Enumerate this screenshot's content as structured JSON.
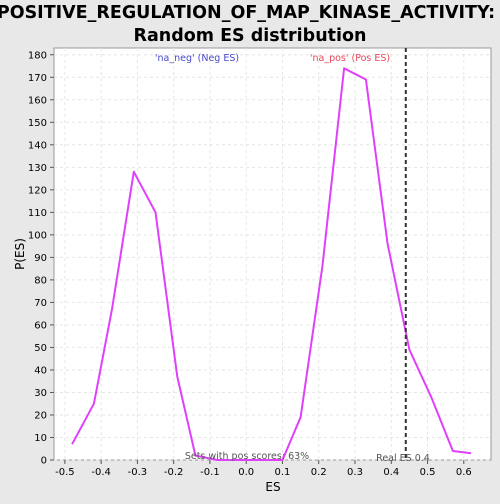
{
  "chart_data": {
    "type": "line",
    "title_lines": [
      "POSITIVE_REGULATION_OF_MAP_KINASE_ACTIVITY:",
      "Random ES distribution"
    ],
    "xlabel": "ES",
    "ylabel": "P(ES)",
    "xlim": [
      -0.53,
      0.675
    ],
    "ylim": [
      0,
      183
    ],
    "x_ticks": [
      -0.5,
      -0.4,
      -0.3,
      -0.2,
      -0.1,
      0.0,
      0.1,
      0.2,
      0.3,
      0.4,
      0.5,
      0.6
    ],
    "x_tick_labels": [
      "-0.5",
      "-0.4",
      "-0.3",
      "-0.2",
      "-0.1",
      "0.0",
      "0.1",
      "0.2",
      "0.3",
      "0.4",
      "0.5",
      "0.6"
    ],
    "y_ticks": [
      0,
      10,
      20,
      30,
      40,
      50,
      60,
      70,
      80,
      90,
      100,
      110,
      120,
      130,
      140,
      150,
      160,
      170,
      180
    ],
    "y_tick_labels": [
      "0",
      "10",
      "20",
      "30",
      "40",
      "50",
      "60",
      "70",
      "80",
      "90",
      "100",
      "110",
      "120",
      "130",
      "140",
      "150",
      "160",
      "170",
      "180"
    ],
    "grid": true,
    "series": [
      {
        "color": "#e040fb",
        "points": [
          {
            "x": -0.48,
            "y": 7
          },
          {
            "x": -0.42,
            "y": 25
          },
          {
            "x": -0.37,
            "y": 67
          },
          {
            "x": -0.31,
            "y": 128
          },
          {
            "x": -0.25,
            "y": 110
          },
          {
            "x": -0.19,
            "y": 37
          },
          {
            "x": -0.14,
            "y": 2
          },
          {
            "x": -0.08,
            "y": 0
          },
          {
            "x": 0.1,
            "y": 0
          },
          {
            "x": 0.15,
            "y": 19
          },
          {
            "x": 0.21,
            "y": 86
          },
          {
            "x": 0.27,
            "y": 174
          },
          {
            "x": 0.33,
            "y": 169
          },
          {
            "x": 0.39,
            "y": 96
          },
          {
            "x": 0.45,
            "y": 49
          },
          {
            "x": 0.51,
            "y": 28
          },
          {
            "x": 0.57,
            "y": 4
          },
          {
            "x": 0.62,
            "y": 3
          }
        ]
      }
    ],
    "real_es_line": {
      "x": 0.44,
      "color": "#333333"
    },
    "annotations": {
      "neg_label": {
        "text": "'na_neg' (Neg ES)",
        "color": "#4a4acd"
      },
      "pos_label": {
        "text": "'na_pos' (Pos ES)",
        "color": "#e8475a"
      },
      "pos_scores": {
        "text": "Sets with pos scores: 63%",
        "color": "#555555"
      },
      "real_es": {
        "text": "Real ES 0.4",
        "color": "#555555"
      }
    }
  }
}
